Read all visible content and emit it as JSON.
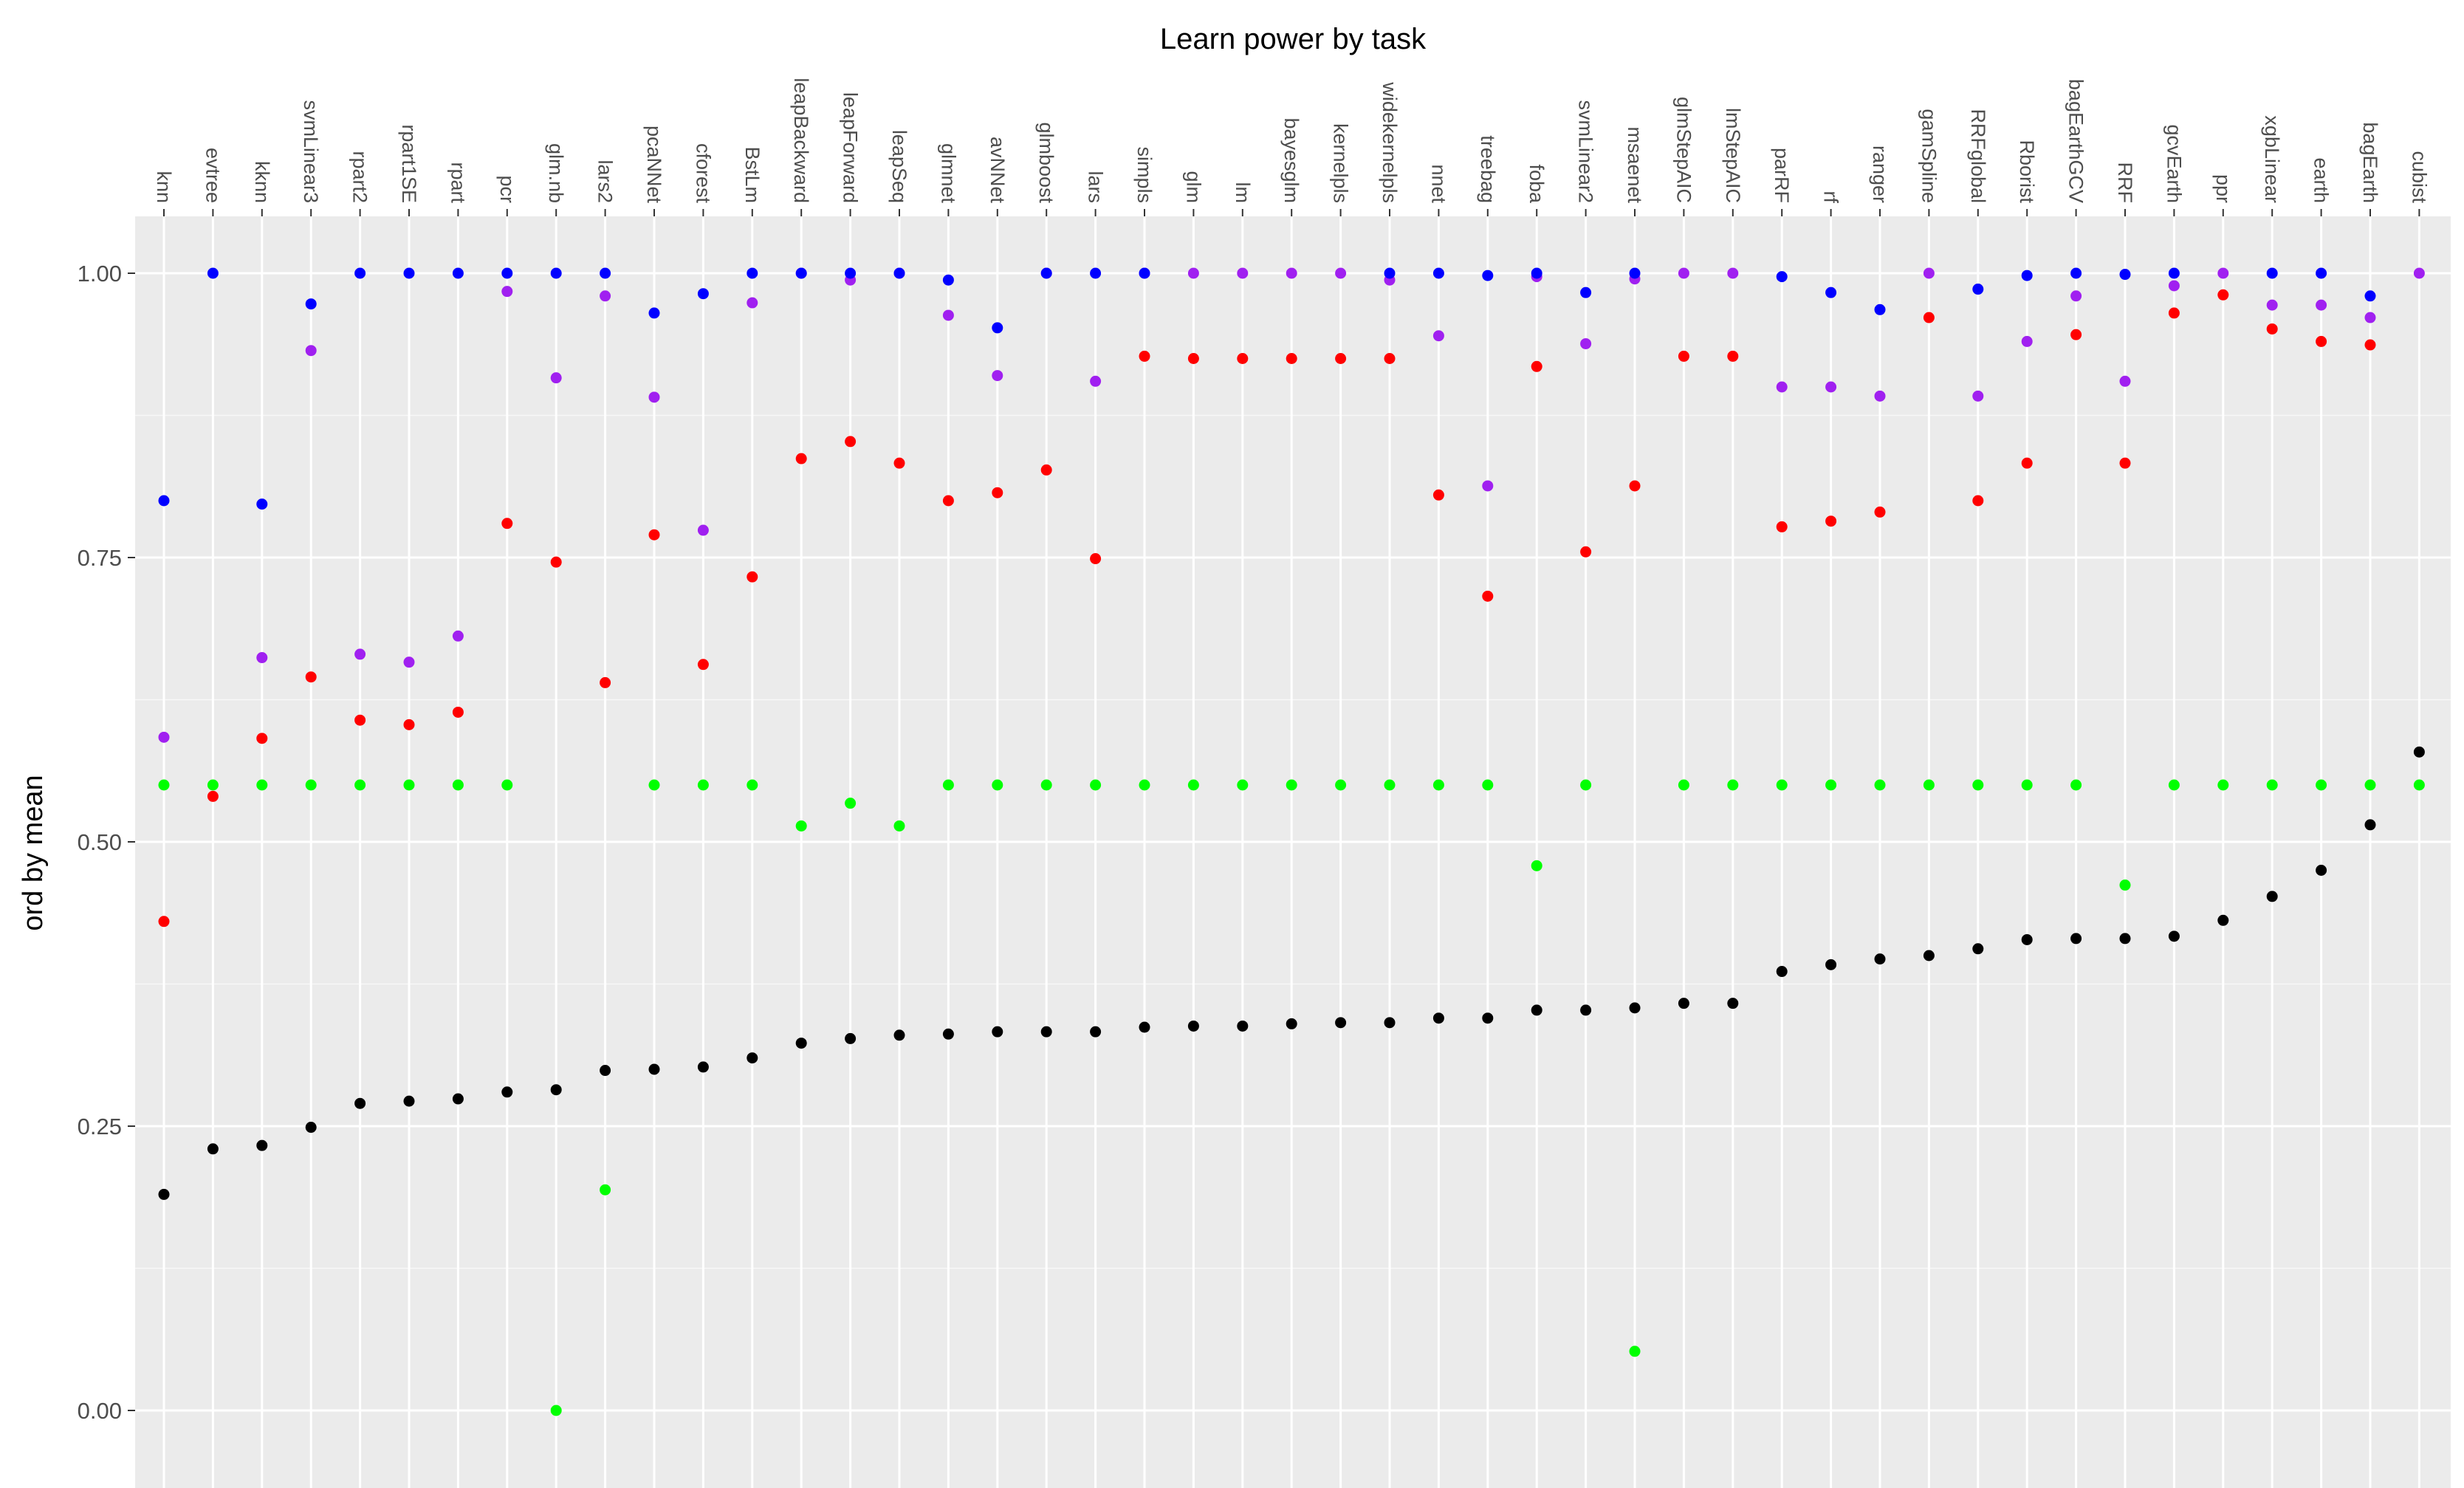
{
  "chart_data": {
    "type": "scatter",
    "title": "Learn power by task",
    "xlabel": "",
    "ylabel": "ord by mean",
    "x_axis_position": "top",
    "ylim": [
      -0.05,
      1.05
    ],
    "y_ticks": [
      "0.00",
      "0.25",
      "0.50",
      "0.75",
      "1.00"
    ],
    "grid": true,
    "legend": "none",
    "categories": [
      "knn",
      "evtree",
      "kknn",
      "svmLinear3",
      "rpart2",
      "rpart1SE",
      "rpart",
      "pcr",
      "glm.nb",
      "lars2",
      "pcaNNet",
      "cforest",
      "BstLm",
      "leapBackward",
      "leapForward",
      "leapSeq",
      "glmnet",
      "avNNet",
      "glmboost",
      "lars",
      "simpls",
      "glm",
      "lm",
      "bayesglm",
      "kernelpls",
      "widekernelpls",
      "nnet",
      "treebag",
      "foba",
      "svmLinear2",
      "msaenet",
      "glmStepAIC",
      "lmStepAIC",
      "parRF",
      "rf",
      "ranger",
      "gamSpline",
      "RRFglobal",
      "Rborist",
      "bagEarthGCV",
      "RRF",
      "gcvEarth",
      "ppr",
      "xgbLinear",
      "earth",
      "bagEarth",
      "cubist"
    ],
    "series": [
      {
        "color": "#000000",
        "values": [
          0.19,
          0.23,
          0.233,
          0.249,
          0.27,
          0.272,
          0.274,
          0.28,
          0.282,
          0.299,
          0.3,
          0.302,
          0.31,
          0.323,
          0.327,
          0.33,
          0.331,
          0.333,
          0.333,
          0.333,
          0.337,
          0.338,
          0.338,
          0.34,
          0.341,
          0.341,
          0.345,
          0.345,
          0.352,
          0.352,
          0.354,
          0.358,
          0.358,
          0.386,
          0.392,
          0.397,
          0.4,
          0.406,
          0.414,
          0.415,
          0.415,
          0.417,
          0.431,
          0.452,
          0.475,
          0.515,
          0.579
        ]
      },
      {
        "color": "#00FF00",
        "values": [
          0.55,
          0.55,
          0.55,
          0.55,
          0.55,
          0.55,
          0.55,
          0.55,
          0.0,
          0.194,
          0.55,
          0.55,
          0.55,
          0.514,
          0.534,
          0.514,
          0.55,
          0.55,
          0.55,
          0.55,
          0.55,
          0.55,
          0.55,
          0.55,
          0.55,
          0.55,
          0.55,
          0.55,
          0.479,
          0.55,
          0.052,
          0.55,
          0.55,
          0.55,
          0.55,
          0.55,
          0.55,
          0.55,
          0.55,
          0.55,
          0.462,
          0.55,
          0.55,
          0.55,
          0.55,
          0.55,
          0.55
        ]
      },
      {
        "color": "#FF0000",
        "values": [
          0.43,
          0.54,
          0.591,
          0.645,
          0.607,
          0.603,
          0.614,
          0.78,
          0.746,
          0.64,
          0.77,
          0.656,
          0.733,
          0.837,
          0.852,
          0.833,
          0.8,
          0.807,
          0.827,
          0.749,
          0.927,
          0.925,
          0.925,
          0.925,
          0.925,
          0.925,
          0.805,
          0.716,
          0.918,
          0.755,
          0.813,
          0.927,
          0.927,
          0.777,
          0.782,
          0.79,
          0.961,
          0.8,
          0.833,
          0.946,
          0.833,
          0.965,
          0.981,
          0.951,
          0.94,
          0.937,
          null
        ]
      },
      {
        "color": "#A020F0",
        "values": [
          0.592,
          null,
          0.662,
          0.932,
          0.665,
          0.658,
          0.681,
          0.984,
          0.908,
          0.98,
          0.891,
          0.774,
          0.974,
          1.0,
          0.994,
          1.0,
          0.963,
          0.91,
          1.0,
          0.905,
          1.0,
          1.0,
          1.0,
          1.0,
          1.0,
          0.994,
          0.945,
          0.813,
          0.997,
          0.938,
          0.995,
          1.0,
          1.0,
          0.9,
          0.9,
          0.892,
          1.0,
          0.892,
          0.94,
          0.98,
          0.905,
          0.989,
          1.0,
          0.972,
          0.972,
          0.961,
          1.0
        ]
      },
      {
        "color": "#0000FF",
        "values": [
          0.8,
          1.0,
          0.797,
          0.973,
          1.0,
          1.0,
          1.0,
          1.0,
          1.0,
          1.0,
          0.965,
          0.982,
          1.0,
          1.0,
          1.0,
          1.0,
          0.994,
          0.952,
          1.0,
          1.0,
          1.0,
          null,
          null,
          null,
          null,
          1.0,
          1.0,
          0.998,
          1.0,
          0.983,
          1.0,
          null,
          null,
          0.997,
          0.983,
          0.968,
          null,
          0.986,
          0.998,
          1.0,
          0.999,
          1.0,
          null,
          1.0,
          1.0,
          0.98,
          null
        ]
      }
    ]
  }
}
